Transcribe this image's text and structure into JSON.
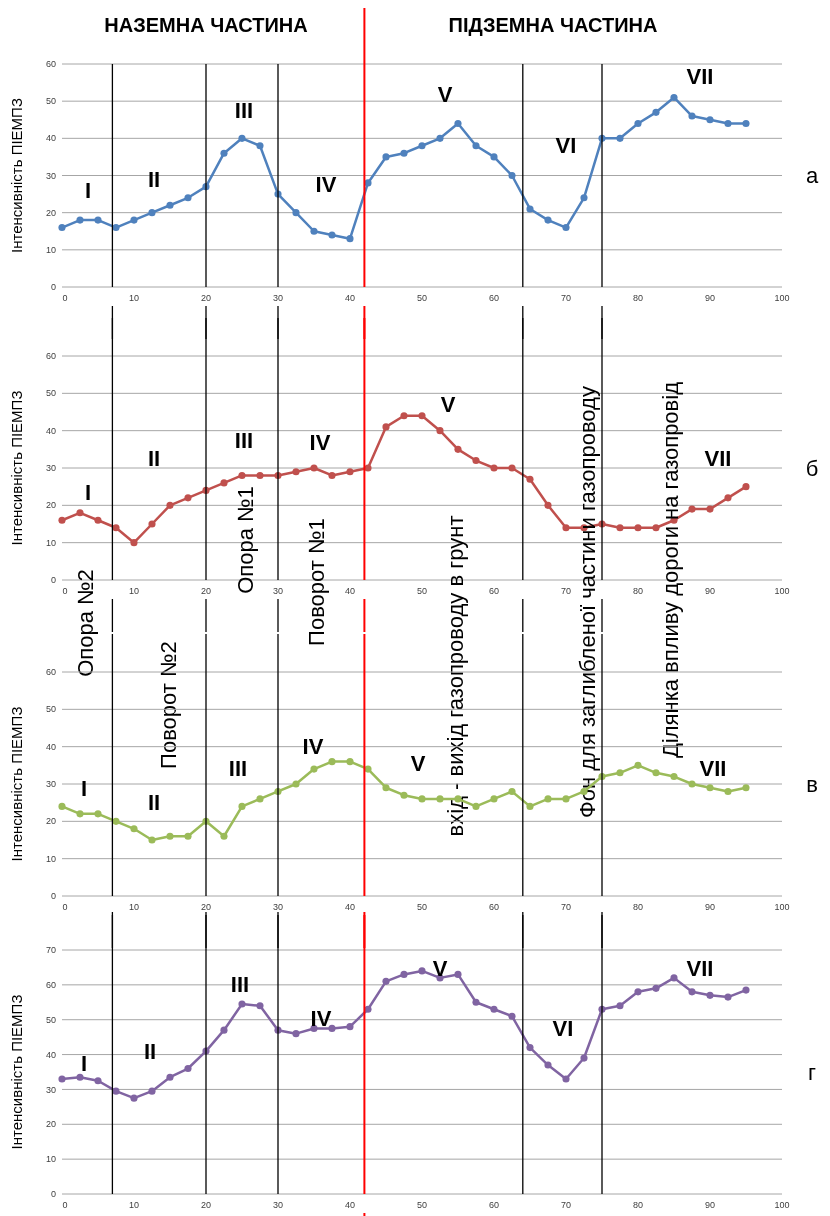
{
  "chart_data": [
    {
      "type": "line",
      "ylabel": "Інтенсивність ПІЕМПЗ",
      "xlim": [
        0,
        100
      ],
      "xticks": [
        0,
        10,
        20,
        30,
        40,
        50,
        60,
        70,
        80,
        90,
        100
      ],
      "ylim": [
        0,
        60
      ],
      "yticks": [
        0,
        10,
        20,
        30,
        40,
        50,
        60
      ],
      "grid": "y",
      "marker": "circle",
      "x": [
        0,
        2.5,
        5,
        7.5,
        10,
        12.5,
        15,
        17.5,
        20,
        22.5,
        25,
        27.5,
        30,
        32.5,
        35,
        37.5,
        40,
        42.5,
        45,
        47.5,
        50,
        52.5,
        55,
        57.5,
        60,
        62.5,
        65,
        67.5,
        70,
        72.5,
        75,
        77.5,
        80,
        82.5,
        85,
        87.5,
        90,
        92.5,
        95
      ],
      "series": [
        {
          "color": "#4f81bd",
          "values": [
            16,
            18,
            18,
            16,
            18,
            20,
            22,
            24,
            27,
            36,
            40,
            38,
            25,
            20,
            15,
            14,
            13,
            28,
            35,
            36,
            38,
            40,
            44,
            38,
            35,
            30,
            21,
            18,
            16,
            24,
            40,
            40,
            44,
            47,
            51,
            46,
            45,
            44,
            44
          ]
        }
      ],
      "ref_lines": [
        {
          "axis": "x",
          "value": 7,
          "color": "#000000"
        },
        {
          "axis": "x",
          "value": 20,
          "color": "#000000"
        },
        {
          "axis": "x",
          "value": 30,
          "color": "#000000"
        },
        {
          "axis": "x",
          "value": 42,
          "color": "#ff0000"
        },
        {
          "axis": "x",
          "value": 64,
          "color": "#000000"
        },
        {
          "axis": "x",
          "value": 75,
          "color": "#000000"
        }
      ],
      "annotations": [
        "а",
        "НАЗЕМНА ЧАСТИНА",
        "ПІДЗЕМНА ЧАСТИНА",
        "I",
        "II",
        "III",
        "IV",
        "V",
        "VI",
        "VII"
      ]
    },
    {
      "type": "line",
      "ylabel": "Інтенсивність ПІЕМПЗ",
      "xlim": [
        0,
        100
      ],
      "xticks": [
        0,
        10,
        20,
        30,
        40,
        50,
        60,
        70,
        80,
        90,
        100
      ],
      "ylim": [
        0,
        60
      ],
      "yticks": [
        0,
        10,
        20,
        30,
        40,
        50,
        60
      ],
      "grid": "y",
      "marker": "circle",
      "x": [
        0,
        2.5,
        5,
        7.5,
        10,
        12.5,
        15,
        17.5,
        20,
        22.5,
        25,
        27.5,
        30,
        32.5,
        35,
        37.5,
        40,
        42.5,
        45,
        47.5,
        50,
        52.5,
        55,
        57.5,
        60,
        62.5,
        65,
        67.5,
        70,
        72.5,
        75,
        77.5,
        80,
        82.5,
        85,
        87.5,
        90,
        92.5,
        95
      ],
      "series": [
        {
          "color": "#c0504d",
          "values": [
            16,
            18,
            16,
            14,
            10,
            15,
            20,
            22,
            24,
            26,
            28,
            28,
            28,
            29,
            30,
            28,
            29,
            30,
            41,
            44,
            44,
            40,
            35,
            32,
            30,
            30,
            27,
            20,
            14,
            14,
            15,
            14,
            14,
            14,
            16,
            19,
            19,
            22,
            25
          ]
        }
      ],
      "ref_lines": [
        {
          "axis": "x",
          "value": 7,
          "color": "#000000"
        },
        {
          "axis": "x",
          "value": 20,
          "color": "#000000"
        },
        {
          "axis": "x",
          "value": 30,
          "color": "#000000"
        },
        {
          "axis": "x",
          "value": 42,
          "color": "#ff0000"
        },
        {
          "axis": "x",
          "value": 64,
          "color": "#000000"
        },
        {
          "axis": "x",
          "value": 75,
          "color": "#000000"
        }
      ],
      "annotations": [
        "б",
        "Опора №2",
        "Поворот №2",
        "Опора №1",
        "Поворот №1",
        "вхід - вихід газопроводу в грунт",
        "Фон для заглибленої частини газопроводу",
        "Ділянка впливу дороги на газопровід",
        "I",
        "II",
        "III",
        "IV",
        "V",
        "VII"
      ]
    },
    {
      "type": "line",
      "ylabel": "Інтенсивність ПІЕМПЗ",
      "xlim": [
        0,
        100
      ],
      "xticks": [
        0,
        10,
        20,
        30,
        40,
        50,
        60,
        70,
        80,
        90,
        100
      ],
      "ylim": [
        0,
        60
      ],
      "yticks": [
        0,
        10,
        20,
        30,
        40,
        50,
        60
      ],
      "grid": "y",
      "marker": "circle",
      "x": [
        0,
        2.5,
        5,
        7.5,
        10,
        12.5,
        15,
        17.5,
        20,
        22.5,
        25,
        27.5,
        30,
        32.5,
        35,
        37.5,
        40,
        42.5,
        45,
        47.5,
        50,
        52.5,
        55,
        57.5,
        60,
        62.5,
        65,
        67.5,
        70,
        72.5,
        75,
        77.5,
        80,
        82.5,
        85,
        87.5,
        90,
        92.5,
        95
      ],
      "series": [
        {
          "color": "#9bbb59",
          "values": [
            24,
            22,
            22,
            20,
            18,
            15,
            16,
            16,
            20,
            16,
            24,
            26,
            28,
            30,
            34,
            36,
            36,
            34,
            29,
            27,
            26,
            26,
            26,
            24,
            26,
            28,
            24,
            26,
            26,
            28,
            32,
            33,
            35,
            33,
            32,
            30,
            29,
            28,
            29
          ]
        }
      ],
      "ref_lines": [
        {
          "axis": "x",
          "value": 7,
          "color": "#000000"
        },
        {
          "axis": "x",
          "value": 20,
          "color": "#000000"
        },
        {
          "axis": "x",
          "value": 30,
          "color": "#000000"
        },
        {
          "axis": "x",
          "value": 42,
          "color": "#ff0000"
        },
        {
          "axis": "x",
          "value": 64,
          "color": "#000000"
        },
        {
          "axis": "x",
          "value": 75,
          "color": "#000000"
        }
      ],
      "annotations": [
        "в",
        "I",
        "II",
        "III",
        "IV",
        "V",
        "VII"
      ]
    },
    {
      "type": "line",
      "ylabel": "Інтенсивність ПІЕМПЗ",
      "xlim": [
        0,
        100
      ],
      "xticks": [
        0,
        10,
        20,
        30,
        40,
        50,
        60,
        70,
        80,
        90,
        100
      ],
      "ylim": [
        0,
        70
      ],
      "yticks": [
        0,
        10,
        20,
        30,
        40,
        50,
        60,
        70
      ],
      "grid": "y",
      "marker": "circle",
      "x": [
        0,
        2.5,
        5,
        7.5,
        10,
        12.5,
        15,
        17.5,
        20,
        22.5,
        25,
        27.5,
        30,
        32.5,
        35,
        37.5,
        40,
        42.5,
        45,
        47.5,
        50,
        52.5,
        55,
        57.5,
        60,
        62.5,
        65,
        67.5,
        70,
        72.5,
        75,
        77.5,
        80,
        82.5,
        85,
        87.5,
        90,
        92.5,
        95
      ],
      "series": [
        {
          "color": "#8064a2",
          "values": [
            33,
            33.5,
            32.5,
            29.5,
            27.5,
            29.5,
            33.5,
            36,
            41,
            47,
            54.5,
            54,
            47,
            46,
            47.5,
            47.5,
            48,
            53,
            61,
            63,
            64,
            62,
            63,
            55,
            53,
            51,
            42,
            37,
            33,
            39,
            53,
            54,
            58,
            59,
            62,
            58,
            57,
            56.5,
            58.5
          ]
        }
      ],
      "ref_lines": [
        {
          "axis": "x",
          "value": 7,
          "color": "#000000"
        },
        {
          "axis": "x",
          "value": 20,
          "color": "#000000"
        },
        {
          "axis": "x",
          "value": 30,
          "color": "#000000"
        },
        {
          "axis": "x",
          "value": 42,
          "color": "#ff0000"
        },
        {
          "axis": "x",
          "value": 64,
          "color": "#000000"
        },
        {
          "axis": "x",
          "value": 75,
          "color": "#000000"
        }
      ],
      "annotations": [
        "г",
        "I",
        "II",
        "III",
        "IV",
        "V",
        "VI",
        "VII"
      ]
    }
  ]
}
